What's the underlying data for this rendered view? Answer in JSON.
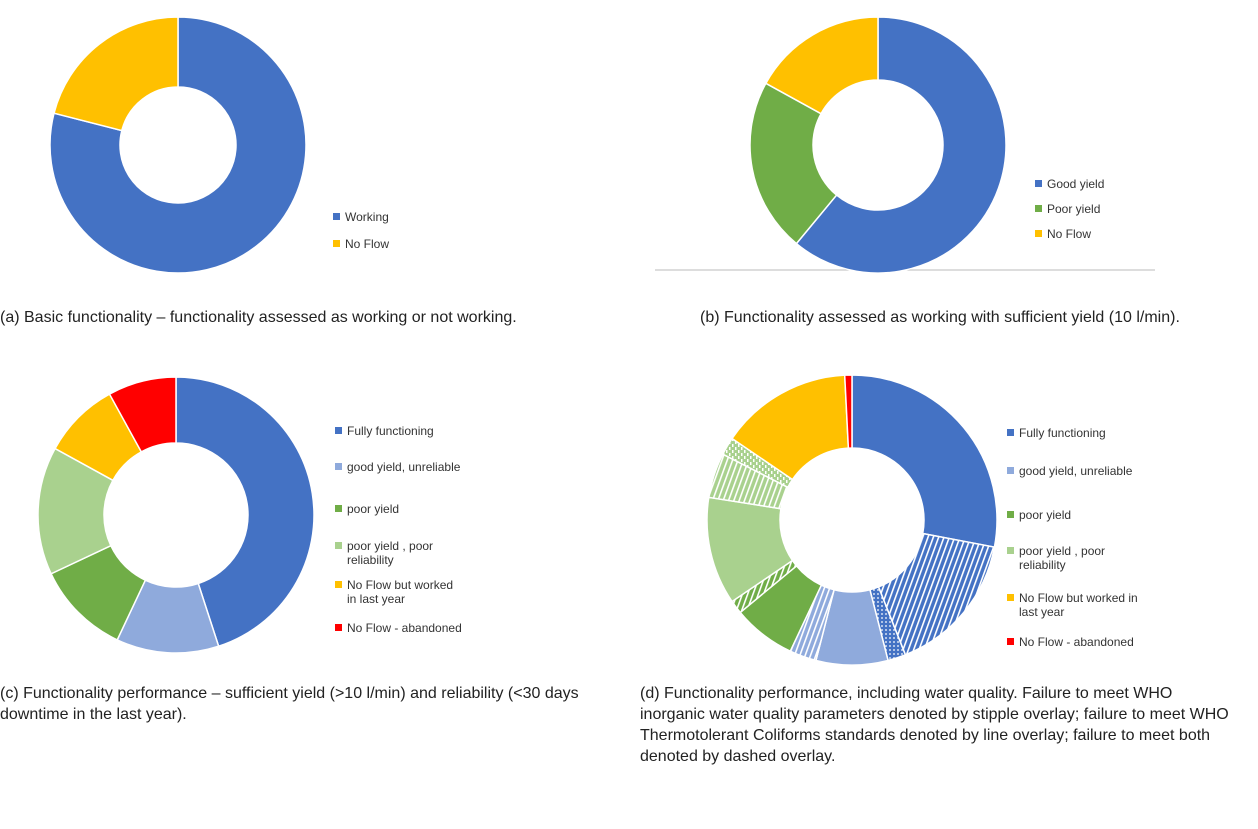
{
  "chart_data": [
    {
      "type": "donut",
      "caption": "(a) Basic functionality – functionality assessed as working or not working.",
      "categories": [
        "Working",
        "No Flow"
      ],
      "colors": [
        "#4472c4",
        "#ffc000"
      ],
      "values": [
        79,
        21
      ]
    },
    {
      "type": "donut",
      "caption": "(b) Functionality assessed as working with sufficient yield (10 l/min).",
      "categories": [
        "Good yield",
        "Poor yield",
        "No Flow"
      ],
      "colors": [
        "#4472c4",
        "#70ad47",
        "#ffc000"
      ],
      "values": [
        61,
        22,
        17
      ]
    },
    {
      "type": "donut",
      "caption": "(c) Functionality performance – sufficient yield (>10 l/min) and reliability (<30 days downtime in the last year).",
      "categories": [
        "Fully functioning",
        "good yield, unreliable",
        "poor yield",
        "poor yield , poor reliability",
        "No Flow but worked in last year",
        "No Flow - abandoned"
      ],
      "colors": [
        "#4472c4",
        "#8faadc",
        "#70ad47",
        "#a9d18e",
        "#ffc000",
        "#ff0000"
      ],
      "values": [
        45,
        12,
        11,
        15,
        9,
        8
      ]
    },
    {
      "type": "donut",
      "caption": "(d) Functionality performance, including water quality. Failure to meet WHO inorganic water quality parameters denoted by stipple overlay; failure to meet WHO Thermotolerant Coliforms standards denoted by line overlay; failure to meet both denoted by dashed overlay.",
      "categories": [
        "Fully functioning",
        "good yield, unreliable",
        "poor yield",
        "poor yield , poor reliability",
        "No Flow but worked in last year",
        "No Flow - abandoned"
      ],
      "colors": [
        "#4472c4",
        "#8faadc",
        "#70ad47",
        "#a9d18e",
        "#ffc000",
        "#ff0000"
      ],
      "segments": [
        {
          "category": "Fully functioning",
          "overlay": "none",
          "value": 28
        },
        {
          "category": "Fully functioning",
          "overlay": "lines",
          "value": 16
        },
        {
          "category": "Fully functioning",
          "overlay": "stipple",
          "value": 2
        },
        {
          "category": "good yield, unreliable",
          "overlay": "none",
          "value": 8
        },
        {
          "category": "good yield, unreliable",
          "overlay": "lines",
          "value": 3
        },
        {
          "category": "poor yield",
          "overlay": "none",
          "value": 7
        },
        {
          "category": "poor yield",
          "overlay": "lines",
          "value": 1.5
        },
        {
          "category": "poor yield , poor reliability",
          "overlay": "none",
          "value": 12
        },
        {
          "category": "poor yield , poor reliability",
          "overlay": "lines",
          "value": 5
        },
        {
          "category": "poor yield , poor reliability",
          "overlay": "dashed",
          "value": 2
        },
        {
          "category": "No Flow but worked in last year",
          "overlay": "none",
          "value": 14.7
        },
        {
          "category": "No Flow - abandoned",
          "overlay": "none",
          "value": 0.8
        }
      ]
    }
  ]
}
